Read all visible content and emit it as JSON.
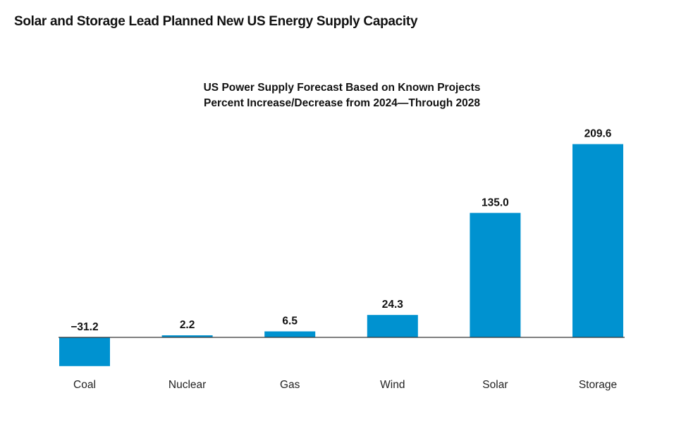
{
  "header": {
    "title": "Solar and Storage Lead Planned New US Energy Supply Capacity"
  },
  "chart_data": {
    "type": "bar",
    "title": "US Power Supply Forecast Based on Known Projects",
    "subtitle": "Percent Increase/Decrease from 2024—Through 2028",
    "categories": [
      "Coal",
      "Nuclear",
      "Gas",
      "Wind",
      "Solar",
      "Storage"
    ],
    "values": [
      -31.2,
      2.2,
      6.5,
      24.3,
      135.0,
      209.6
    ],
    "value_labels": [
      "−31.2",
      "2.2",
      "6.5",
      "24.3",
      "135.0",
      "209.6"
    ],
    "xlabel": "",
    "ylabel": "",
    "grid": false,
    "legend": "none",
    "bar_color": "#0092D0",
    "baseline_color": "#333333"
  }
}
